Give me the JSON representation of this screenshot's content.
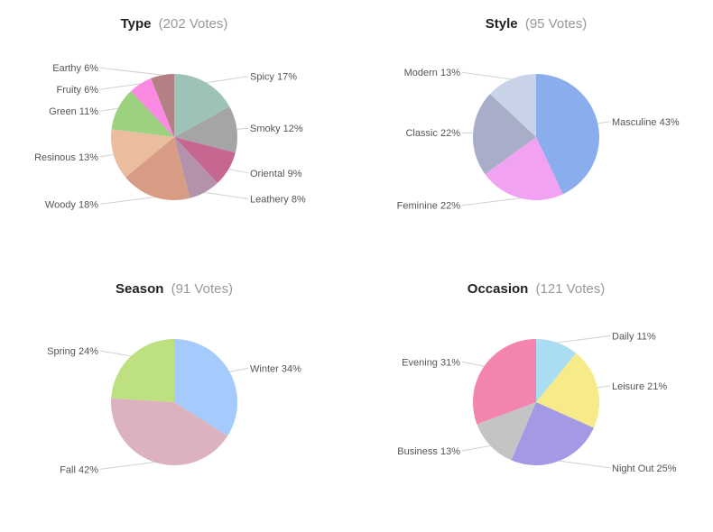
{
  "chart_data": [
    {
      "type": "pie",
      "title": "Type",
      "votes_label": "(202 Votes)",
      "slices": [
        {
          "name": "Spicy",
          "value": 17,
          "label": "Spicy 17%",
          "color": "#9dc3b7"
        },
        {
          "name": "Smoky",
          "value": 12,
          "label": "Smoky 12%",
          "color": "#a5a5a5"
        },
        {
          "name": "Oriental",
          "value": 9,
          "label": "Oriental 9%",
          "color": "#c56790"
        },
        {
          "name": "Leathery",
          "value": 8,
          "label": "Leathery 8%",
          "color": "#b592ab"
        },
        {
          "name": "Woody",
          "value": 18,
          "label": "Woody 18%",
          "color": "#d89c85"
        },
        {
          "name": "Resinous",
          "value": 13,
          "label": "Resinous 13%",
          "color": "#eabd9f"
        },
        {
          "name": "Green",
          "value": 11,
          "label": "Green 11%",
          "color": "#9bd17f"
        },
        {
          "name": "Fruity",
          "value": 6,
          "label": "Fruity 6%",
          "color": "#fb8ae2"
        },
        {
          "name": "Earthy",
          "value": 6,
          "label": "Earthy 6%",
          "color": "#b48083"
        }
      ]
    },
    {
      "type": "pie",
      "title": "Style",
      "votes_label": "(95 Votes)",
      "slices": [
        {
          "name": "Masculine",
          "value": 43,
          "label": "Masculine 43%",
          "color": "#8aadee"
        },
        {
          "name": "Feminine",
          "value": 22,
          "label": "Feminine 22%",
          "color": "#f1a3f1"
        },
        {
          "name": "Classic",
          "value": 22,
          "label": "Classic 22%",
          "color": "#a8adc8"
        },
        {
          "name": "Modern",
          "value": 13,
          "label": "Modern 13%",
          "color": "#c9d3e7"
        }
      ]
    },
    {
      "type": "pie",
      "title": "Season",
      "votes_label": "(91 Votes)",
      "slices": [
        {
          "name": "Winter",
          "value": 34,
          "label": "Winter 34%",
          "color": "#a5cbfd"
        },
        {
          "name": "Fall",
          "value": 42,
          "label": "Fall 42%",
          "color": "#dbb2bd"
        },
        {
          "name": "Spring",
          "value": 24,
          "label": "Spring 24%",
          "color": "#bde081"
        }
      ]
    },
    {
      "type": "pie",
      "title": "Occasion",
      "votes_label": "(121 Votes)",
      "slices": [
        {
          "name": "Daily",
          "value": 11,
          "label": "Daily 11%",
          "color": "#aadcf2"
        },
        {
          "name": "Leisure",
          "value": 21,
          "label": "Leisure 21%",
          "color": "#f7ea89"
        },
        {
          "name": "Night Out",
          "value": 25,
          "label": "Night Out 25%",
          "color": "#a399e5"
        },
        {
          "name": "Business",
          "value": 13,
          "label": "Business 13%",
          "color": "#c4c4c4"
        },
        {
          "name": "Evening",
          "value": 31,
          "label": "Evening 31%",
          "color": "#f384ad"
        }
      ]
    }
  ]
}
